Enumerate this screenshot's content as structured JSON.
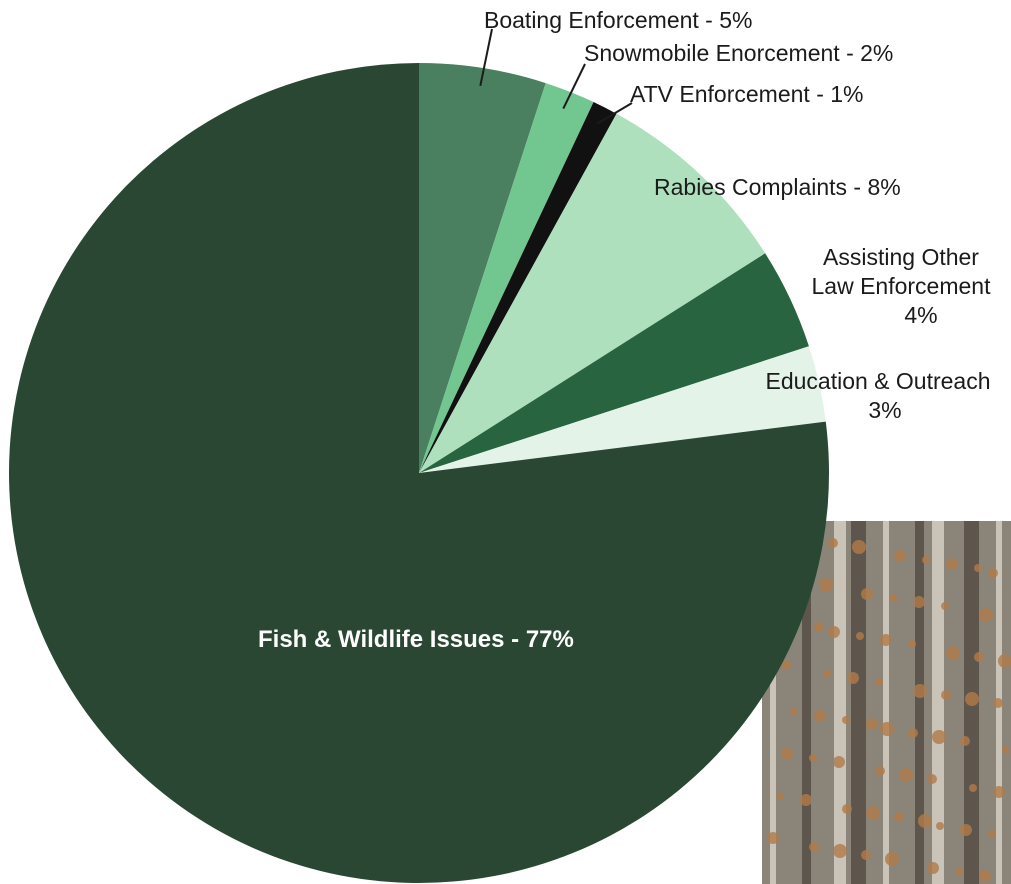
{
  "chart_data": {
    "type": "pie",
    "slices": [
      {
        "name": "Boating Enforcement",
        "value": 5,
        "percent_label": "5%",
        "color": "#4a8060"
      },
      {
        "name": "Snowmobile Enorcement",
        "value": 2,
        "percent_label": "2%",
        "color": "#72c690"
      },
      {
        "name": "ATV Enforcement",
        "value": 1,
        "percent_label": "1%",
        "color": "#111111"
      },
      {
        "name": "Rabies Complaints",
        "value": 8,
        "percent_label": "8%",
        "color": "#aee0bd"
      },
      {
        "name": "Assisting Other Law Enforcement",
        "value": 4,
        "percent_label": "4%",
        "color": "#27643f"
      },
      {
        "name": "Education & Outreach",
        "value": 3,
        "percent_label": "3%",
        "color": "#e4f3e8"
      },
      {
        "name": "Fish & Wildlife Issues",
        "value": 77,
        "percent_label": "77%",
        "color": "#294733"
      }
    ],
    "start": "12 o'clock",
    "direction": "clockwise"
  },
  "labels": {
    "boating": "Boating Enforcement - 5%",
    "snowmobile": "Snowmobile Enorcement - 2%",
    "atv": "ATV Enforcement - 1%",
    "rabies": "Rabies Complaints - 8%",
    "assisting_line1": "Assisting Other",
    "assisting_line2": "Law Enforcement",
    "assisting_line3": "4%",
    "education_line1": "Education & Outreach",
    "education_line2": "3%",
    "fish": "Fish & Wildlife Issues - 77%"
  },
  "photo": {
    "description_icon": "forest-photo",
    "colors": [
      "#8a8578",
      "#b07a4a",
      "#5e564c",
      "#c9c3b8"
    ]
  }
}
